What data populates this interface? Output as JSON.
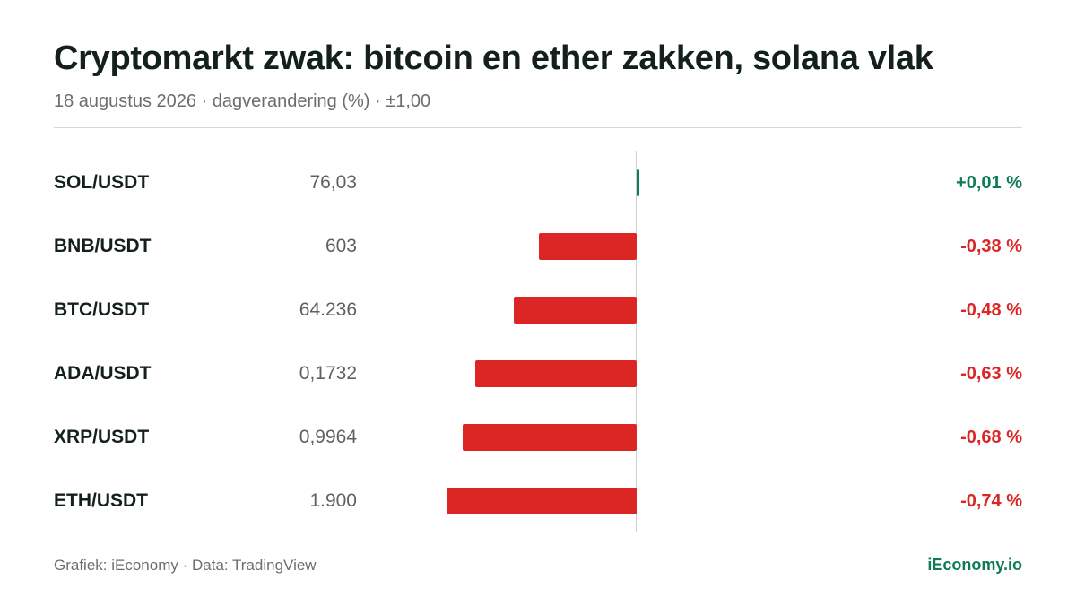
{
  "title": "Cryptomarkt zwak: bitcoin en ether zakken, solana vlak",
  "subtitle": "18 augustus 2026 · dagverandering (%) · ±1,00",
  "footer": {
    "source": "Grafiek: iEconomy · Data: TradingView",
    "brand": "iEconomy.io"
  },
  "colors": {
    "positive": "#0f7a55",
    "negative": "#dc2626",
    "brand": "#0f7a55"
  },
  "chart_data": {
    "type": "bar",
    "orientation": "horizontal",
    "xlim": [
      -1.0,
      1.0
    ],
    "grid": false,
    "categories": [
      "SOL/USDT",
      "BNB/USDT",
      "BTC/USDT",
      "ADA/USDT",
      "XRP/USDT",
      "ETH/USDT"
    ],
    "prices": [
      "76,03",
      "603",
      "64.236",
      "0,1732",
      "0,9964",
      "1.900"
    ],
    "values": [
      0.01,
      -0.38,
      -0.48,
      -0.63,
      -0.68,
      -0.74
    ],
    "value_labels": [
      "+0,01 %",
      "-0,38 %",
      "-0,48 %",
      "-0,63 %",
      "-0,68 %",
      "-0,74 %"
    ]
  }
}
